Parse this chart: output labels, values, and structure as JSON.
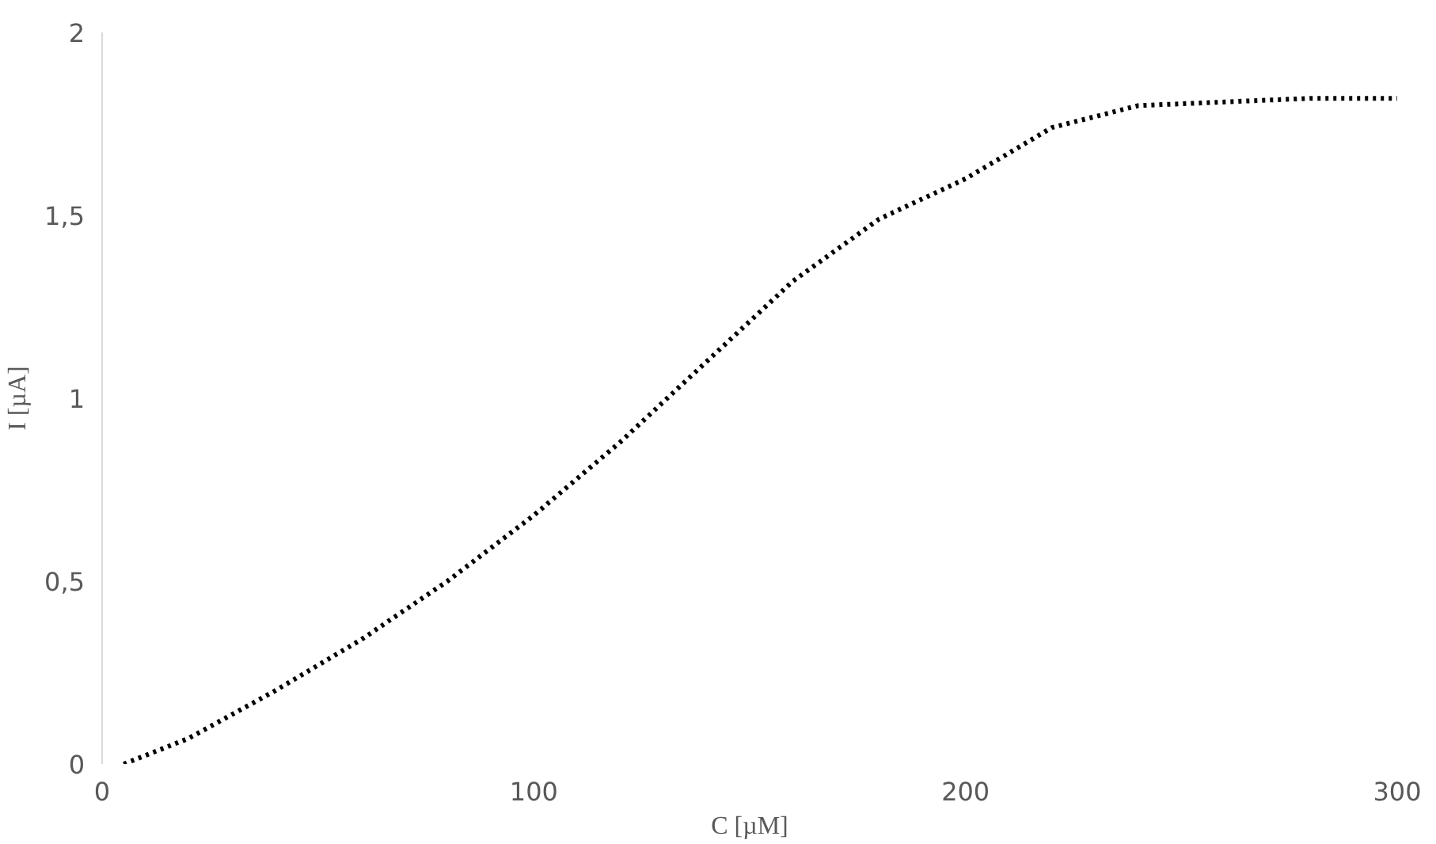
{
  "chart_data": {
    "type": "line",
    "xlabel": "C [µM]",
    "ylabel": "I [µA]",
    "x": [
      5,
      20,
      40,
      60,
      80,
      100,
      120,
      140,
      160,
      180,
      200,
      220,
      240,
      260,
      280,
      300
    ],
    "series": [
      {
        "color": "#000000",
        "values": [
          0,
          0.07,
          0.2,
          0.34,
          0.5,
          0.68,
          0.88,
          1.1,
          1.32,
          1.49,
          1.6,
          1.74,
          1.8,
          1.81,
          1.82,
          1.82
        ]
      }
    ],
    "xlim": [
      0,
      300
    ],
    "ylim": [
      0,
      2
    ],
    "xticks": [
      0,
      100,
      200,
      300
    ],
    "yticks": [
      0,
      {
        "value": 0.5,
        "label": "0,5"
      },
      1,
      {
        "value": 1.5,
        "label": "1,5"
      },
      2
    ],
    "grid": false,
    "marker": "none",
    "line_style": "dotted"
  }
}
